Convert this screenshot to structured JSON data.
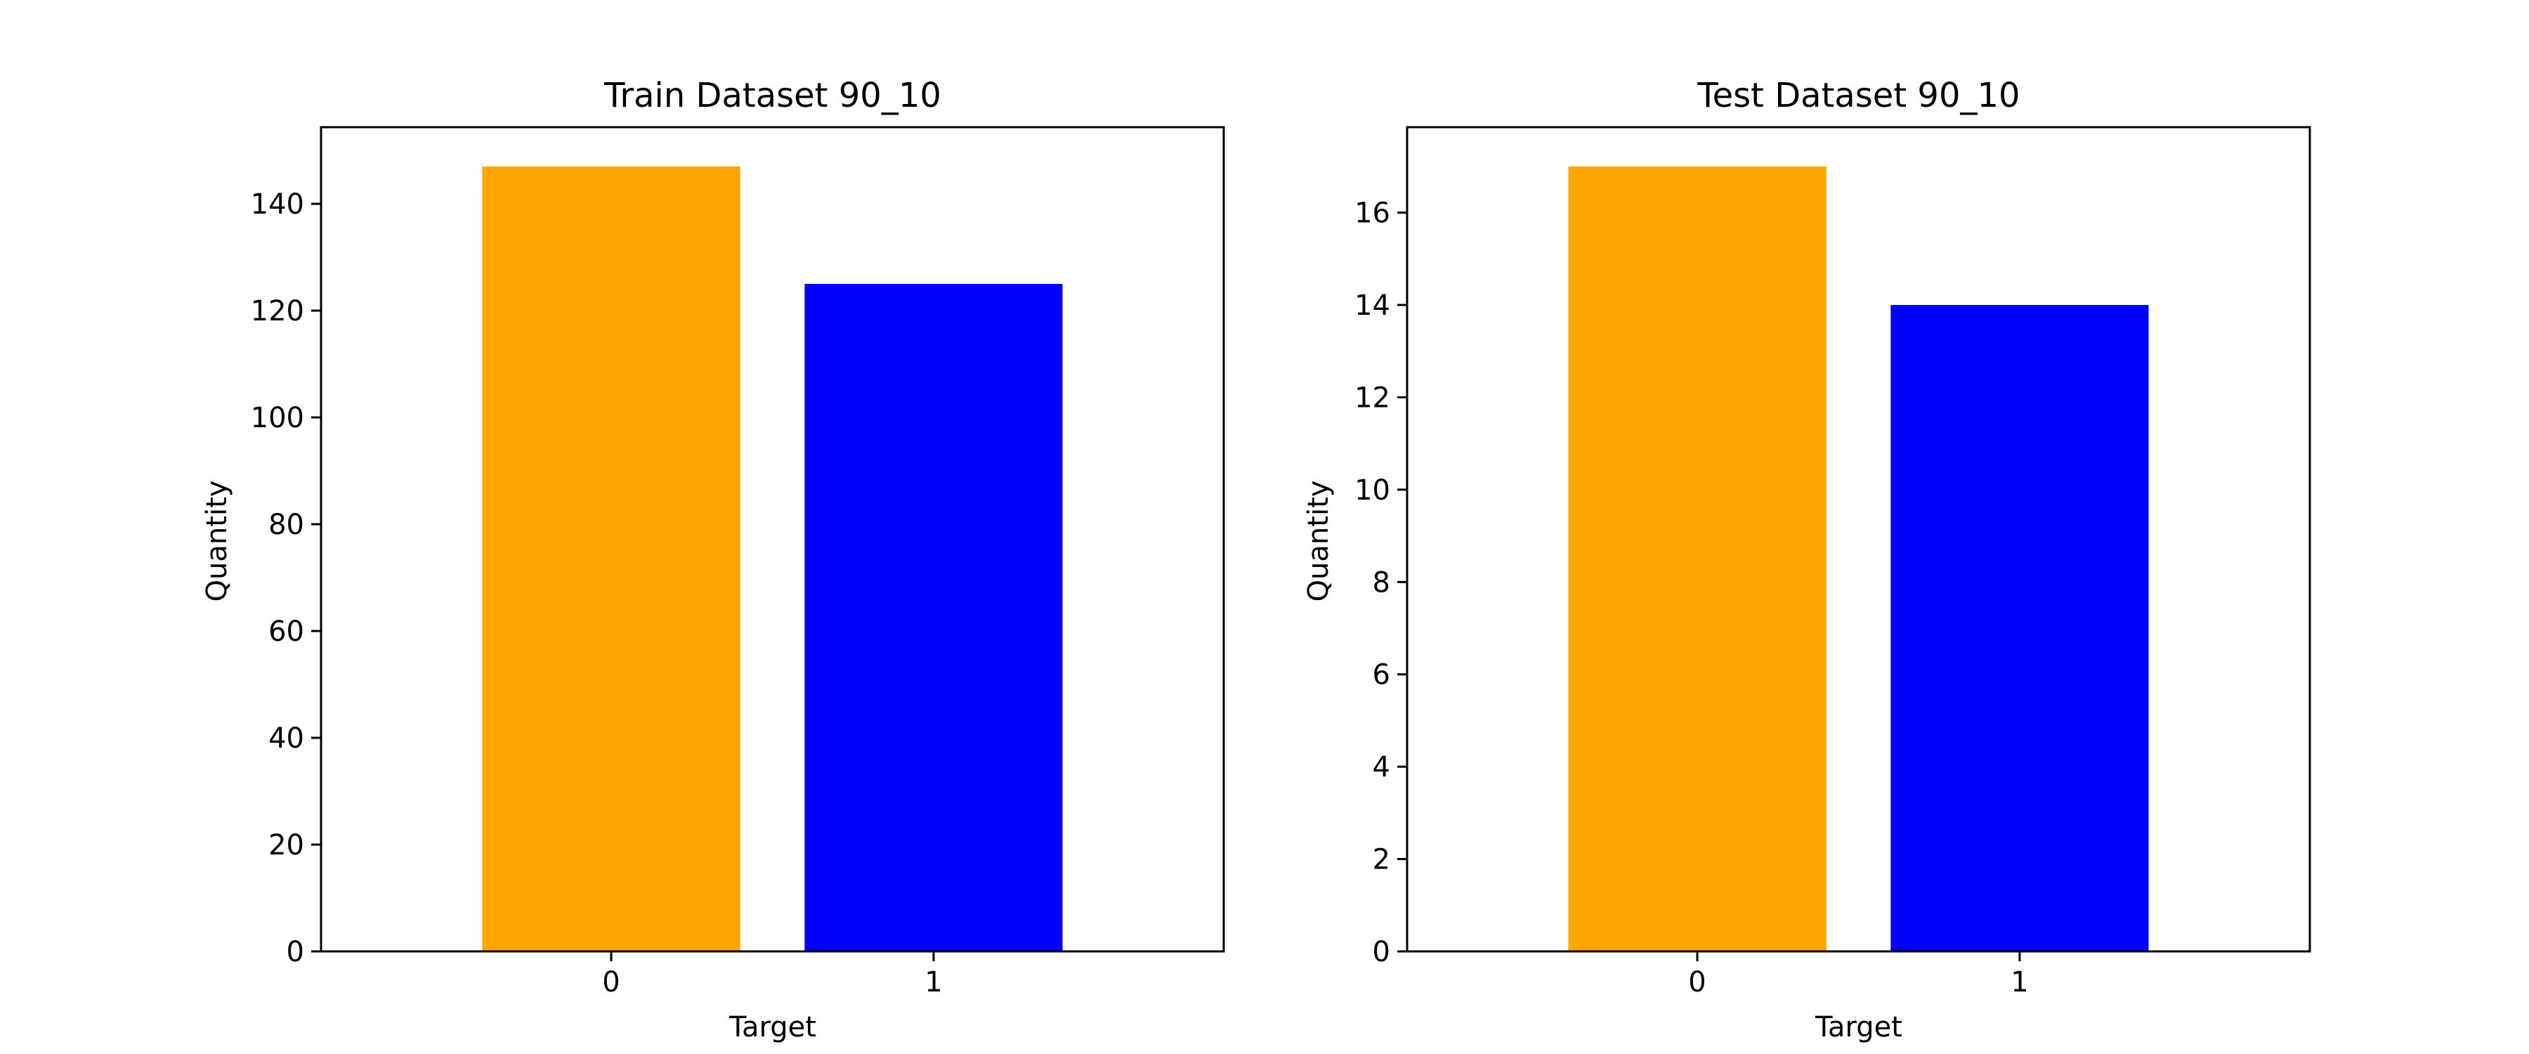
{
  "chart_data": [
    {
      "type": "bar",
      "title": "Train Dataset 90_10",
      "xlabel": "Target",
      "ylabel": "Quantity",
      "categories": [
        "0",
        "1"
      ],
      "values": [
        147,
        125
      ],
      "colors": [
        "#ffa500",
        "#0000ff"
      ],
      "ylim": [
        0,
        154.35
      ],
      "yticks": [
        0,
        20,
        40,
        60,
        80,
        100,
        120,
        140
      ],
      "grid": false,
      "legend": "none"
    },
    {
      "type": "bar",
      "title": "Test Dataset 90_10",
      "xlabel": "Target",
      "ylabel": "Quantity",
      "categories": [
        "0",
        "1"
      ],
      "values": [
        17,
        14
      ],
      "colors": [
        "#ffa500",
        "#0000ff"
      ],
      "ylim": [
        0,
        17.85
      ],
      "yticks": [
        0,
        2,
        4,
        6,
        8,
        10,
        12,
        14,
        16
      ],
      "grid": false,
      "legend": "none"
    }
  ]
}
